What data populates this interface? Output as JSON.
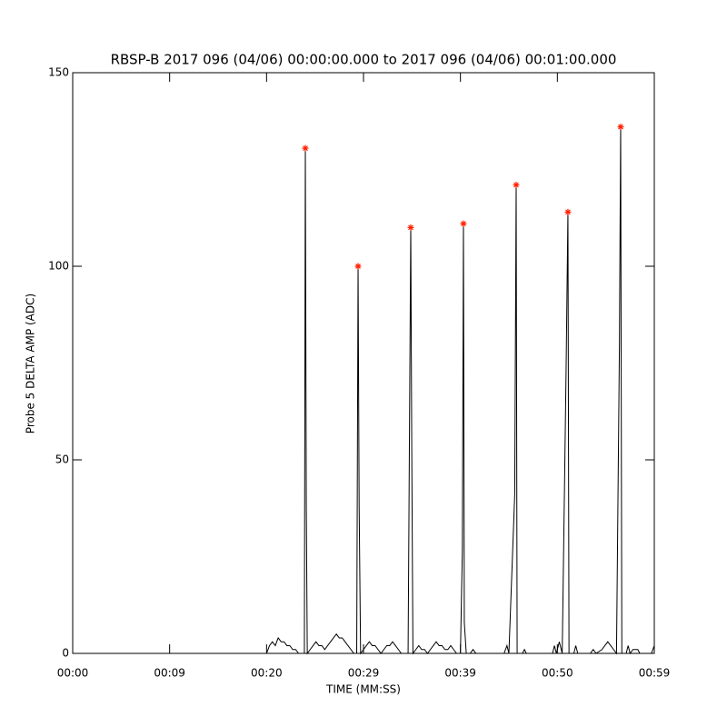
{
  "chart_data": {
    "type": "line",
    "title": "RBSP-B 2017 096 (04/06) 00:00:00.000 to 2017 096 (04/06) 00:01:00.000",
    "xlabel": "TIME (MM:SS)",
    "ylabel": "Probe 5 DELTA AMP (ADC)",
    "xlim": [
      0,
      60
    ],
    "xticks": [
      {
        "value": 0,
        "label": "00:00"
      },
      {
        "value": 10,
        "label": "00:09"
      },
      {
        "value": 20,
        "label": "00:20"
      },
      {
        "value": 30,
        "label": "00:29"
      },
      {
        "value": 40,
        "label": "00:39"
      },
      {
        "value": 50,
        "label": "00:50"
      },
      {
        "value": 60,
        "label": "00:59"
      }
    ],
    "ylim": [
      0,
      150
    ],
    "yticks": [
      0,
      50,
      100,
      150
    ],
    "x": [
      0,
      20.0,
      20.3,
      20.6,
      20.9,
      21.2,
      21.5,
      21.8,
      22.1,
      22.4,
      22.7,
      23.0,
      23.3,
      23.7,
      23.9,
      24.0,
      24.1,
      24.2,
      24.5,
      24.8,
      25.1,
      25.4,
      25.7,
      26.0,
      26.3,
      26.6,
      26.9,
      27.2,
      27.5,
      27.8,
      28.1,
      28.4,
      28.7,
      29.0,
      29.3,
      29.44,
      29.55,
      29.7,
      30.0,
      30.3,
      30.6,
      30.9,
      31.2,
      31.5,
      31.8,
      32.1,
      32.4,
      32.7,
      33.0,
      33.3,
      33.6,
      33.9,
      34.2,
      34.6,
      34.875,
      34.98,
      35.1,
      35.4,
      35.7,
      36.0,
      36.3,
      36.6,
      36.9,
      37.2,
      37.5,
      37.8,
      38.1,
      38.4,
      38.7,
      39.0,
      39.3,
      39.6,
      40.0,
      40.2,
      40.31,
      40.4,
      40.6,
      41.0,
      41.3,
      41.6,
      44.5,
      44.8,
      45.0,
      45.6,
      45.75,
      45.85,
      46.4,
      46.6,
      46.8,
      49.5,
      49.7,
      49.9,
      50.2,
      50.5,
      50.9,
      51.09,
      51.2,
      51.7,
      51.9,
      52.1,
      53.4,
      53.7,
      54.0,
      54.6,
      54.9,
      55.2,
      55.5,
      55.8,
      56.1,
      56.4,
      56.53,
      56.65,
      57.1,
      57.3,
      57.5,
      57.8,
      58.3,
      58.5,
      59.7,
      60
    ],
    "series": [
      {
        "color": "#000000",
        "values": [
          0,
          0,
          2,
          3,
          2,
          4,
          3,
          3,
          2,
          2,
          1,
          1,
          0,
          0,
          0,
          130.5,
          38,
          0,
          1,
          2,
          3,
          2,
          2,
          1,
          2,
          3,
          4,
          5,
          4,
          4,
          3,
          2,
          1,
          0,
          0,
          100,
          38,
          0,
          1,
          2,
          3,
          2,
          2,
          1,
          0,
          1,
          2,
          2,
          3,
          2,
          1,
          0,
          0,
          0,
          110,
          52,
          0,
          1,
          2,
          1,
          1,
          0,
          1,
          2,
          3,
          2,
          2,
          1,
          1,
          2,
          1,
          0,
          0,
          27,
          111,
          8,
          0,
          0,
          1,
          0,
          0,
          2,
          0,
          41,
          121,
          0,
          0,
          1,
          0,
          0,
          2,
          0,
          3,
          0,
          73,
          114,
          0,
          0,
          2,
          0,
          0,
          1,
          0,
          1,
          2,
          3,
          2,
          1,
          0,
          79,
          136,
          0,
          0,
          2,
          0,
          1,
          1,
          0,
          0,
          2
        ]
      }
    ],
    "peaks": {
      "color": "#ff2000",
      "x": [
        24.0,
        29.44,
        34.875,
        40.31,
        45.75,
        51.09,
        56.53
      ],
      "values": [
        130.5,
        100,
        110,
        111,
        121,
        114,
        136
      ]
    }
  }
}
